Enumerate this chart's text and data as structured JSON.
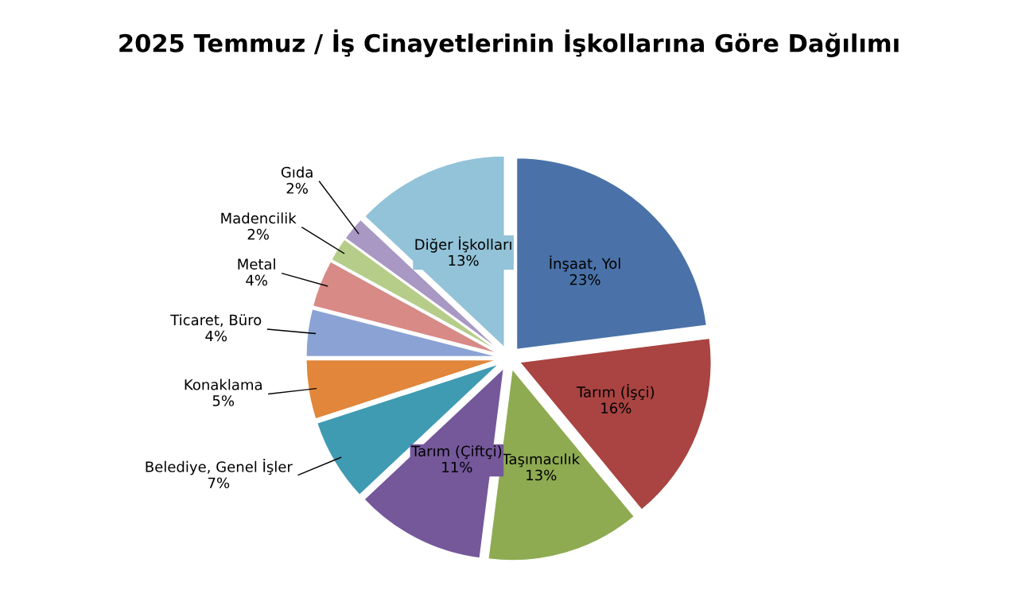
{
  "chart_data": {
    "type": "pie",
    "title": "2025 Temmuz / İş Cinayetlerinin İşkollarına Göre Dağılımı",
    "categories": [
      "İnşaat, Yol",
      "Tarım (İşçi)",
      "Taşımacılık",
      "Tarım (Çiftçi)",
      "Belediye, Genel İşler",
      "Konaklama",
      "Ticaret, Büro",
      "Metal",
      "Madencilik",
      "Gıda",
      "Diğer İşkolları"
    ],
    "values": [
      23,
      16,
      13,
      11,
      7,
      5,
      4,
      4,
      2,
      2,
      13
    ],
    "value_labels": [
      "23%",
      "16%",
      "13%",
      "11%",
      "7%",
      "5%",
      "4%",
      "4%",
      "2%",
      "2%",
      "13%"
    ],
    "colors": [
      "#4a72a8",
      "#a94442",
      "#8eab52",
      "#74589a",
      "#3f9bb2",
      "#e1863a",
      "#8ba3d4",
      "#d88a87",
      "#b6cd8a",
      "#a898c3",
      "#93c3d8"
    ]
  }
}
